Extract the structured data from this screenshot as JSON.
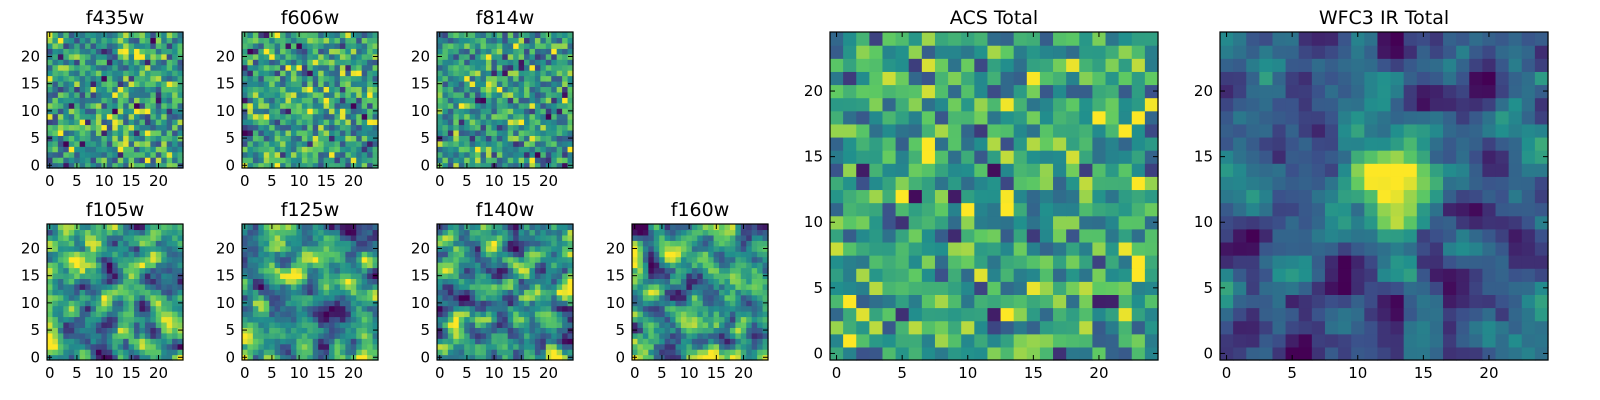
{
  "chart_data": [
    {
      "type": "heatmap",
      "title": "f435w",
      "grid_size": 25,
      "xlim": [
        -0.5,
        24.5
      ],
      "ylim": [
        -0.5,
        24.5
      ],
      "xticks": [
        0,
        5,
        10,
        15,
        20
      ],
      "yticks": [
        0,
        5,
        10,
        15,
        20
      ],
      "colormap": "viridis",
      "pattern": "noise",
      "seed": 11
    },
    {
      "type": "heatmap",
      "title": "f606w",
      "grid_size": 25,
      "xlim": [
        -0.5,
        24.5
      ],
      "ylim": [
        -0.5,
        24.5
      ],
      "xticks": [
        0,
        5,
        10,
        15,
        20
      ],
      "yticks": [
        0,
        5,
        10,
        15,
        20
      ],
      "colormap": "viridis",
      "pattern": "noise",
      "seed": 23
    },
    {
      "type": "heatmap",
      "title": "f814w",
      "grid_size": 25,
      "xlim": [
        -0.5,
        24.5
      ],
      "ylim": [
        -0.5,
        24.5
      ],
      "xticks": [
        0,
        5,
        10,
        15,
        20
      ],
      "yticks": [
        0,
        5,
        10,
        15,
        20
      ],
      "colormap": "viridis",
      "pattern": "noise",
      "seed": 37
    },
    {
      "type": "heatmap",
      "title": "f105w",
      "grid_size": 25,
      "xlim": [
        -0.5,
        24.5
      ],
      "ylim": [
        -0.5,
        24.5
      ],
      "xticks": [
        0,
        5,
        10,
        15,
        20
      ],
      "yticks": [
        0,
        5,
        10,
        15,
        20
      ],
      "colormap": "viridis",
      "pattern": "smooth",
      "seed": 41
    },
    {
      "type": "heatmap",
      "title": "f125w",
      "grid_size": 25,
      "xlim": [
        -0.5,
        24.5
      ],
      "ylim": [
        -0.5,
        24.5
      ],
      "xticks": [
        0,
        5,
        10,
        15,
        20
      ],
      "yticks": [
        0,
        5,
        10,
        15,
        20
      ],
      "colormap": "viridis",
      "pattern": "smooth",
      "seed": 53
    },
    {
      "type": "heatmap",
      "title": "f140w",
      "grid_size": 25,
      "xlim": [
        -0.5,
        24.5
      ],
      "ylim": [
        -0.5,
        24.5
      ],
      "xticks": [
        0,
        5,
        10,
        15,
        20
      ],
      "yticks": [
        0,
        5,
        10,
        15,
        20
      ],
      "colormap": "viridis",
      "pattern": "smooth",
      "seed": 67
    },
    {
      "type": "heatmap",
      "title": "f160w",
      "grid_size": 25,
      "xlim": [
        -0.5,
        24.5
      ],
      "ylim": [
        -0.5,
        24.5
      ],
      "xticks": [
        0,
        5,
        10,
        15,
        20
      ],
      "yticks": [
        0,
        5,
        10,
        15,
        20
      ],
      "colormap": "viridis",
      "pattern": "smooth",
      "seed": 79
    },
    {
      "type": "heatmap",
      "title": "ACS Total",
      "grid_size": 25,
      "xlim": [
        -0.5,
        24.5
      ],
      "ylim": [
        -0.5,
        24.5
      ],
      "xticks": [
        0,
        5,
        10,
        15,
        20
      ],
      "yticks": [
        0,
        5,
        10,
        15,
        20
      ],
      "colormap": "viridis",
      "pattern": "noise_bright",
      "seed": 97
    },
    {
      "type": "heatmap",
      "title": "WFC3 IR Total",
      "grid_size": 25,
      "xlim": [
        -0.5,
        24.5
      ],
      "ylim": [
        -0.5,
        24.5
      ],
      "xticks": [
        0,
        5,
        10,
        15,
        20
      ],
      "yticks": [
        0,
        5,
        10,
        15,
        20
      ],
      "colormap": "viridis",
      "pattern": "source",
      "source_center": [
        12,
        13
      ],
      "seed": 113
    }
  ],
  "colors": {
    "viridis": [
      "#440154",
      "#3b528b",
      "#21908d",
      "#5dc963",
      "#fde725"
    ]
  }
}
